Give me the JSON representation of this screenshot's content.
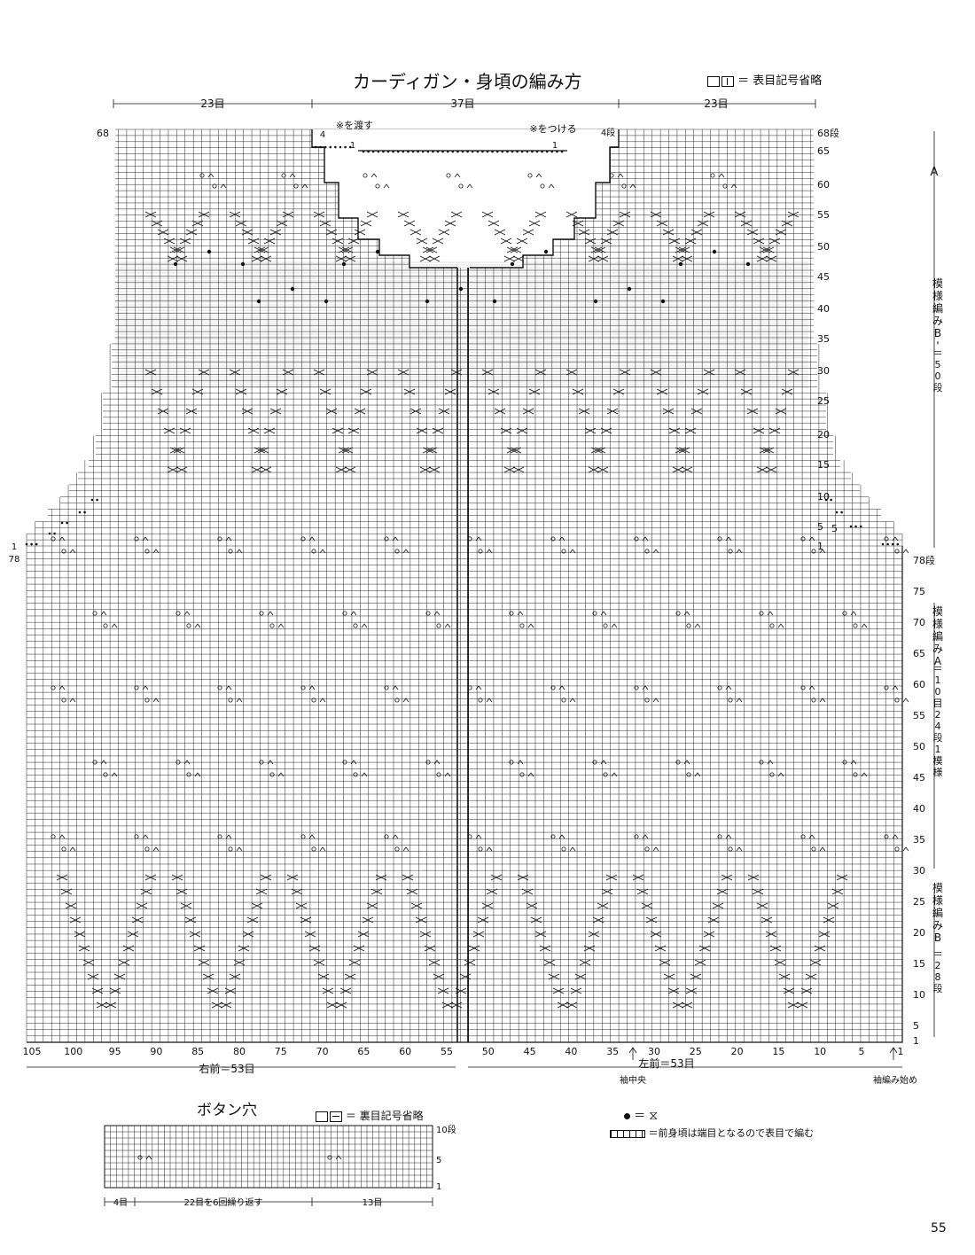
{
  "title": "カーディガン・身頃の編み方",
  "legend_top": "＝ 表目記号省略",
  "widths": {
    "left": "23目",
    "center": "37目",
    "right": "23目"
  },
  "annotations": {
    "transfer": "※を渡す",
    "attach": "※をつける",
    "four": "4",
    "one": "1",
    "four_rows": "4段",
    "sleeve_center": "袖中央",
    "sleeve_start": "袖編み始め",
    "right_front": "右前＝53目",
    "left_front": "左前＝53目"
  },
  "row_labels_upper": [
    "68段",
    "65",
    "60",
    "55",
    "50",
    "45",
    "40",
    "35",
    "30",
    "25",
    "20",
    "15",
    "10",
    "5",
    "1"
  ],
  "upper_left_labels": {
    "top": "68",
    "bottom_a": "1",
    "bottom_b": "78"
  },
  "row_labels_lower": [
    "78段",
    "75",
    "70",
    "65",
    "60",
    "55",
    "50",
    "45",
    "40",
    "35",
    "30",
    "25",
    "20",
    "15",
    "10",
    "5",
    "1"
  ],
  "col_labels": [
    "105",
    "100",
    "95",
    "90",
    "85",
    "80",
    "75",
    "70",
    "65",
    "60",
    "55",
    "50",
    "45",
    "40",
    "35",
    "30",
    "25",
    "20",
    "15",
    "10",
    "5",
    "1"
  ],
  "side": {
    "A": "A",
    "bprime_label": "模様編みB'",
    "bprime_rows": "＝50段",
    "a_label": "模様編みA",
    "a_rows": "＝10目24段1模様",
    "b_label": "模様編みB",
    "b_rows": "＝28段"
  },
  "buttonhole": {
    "title": "ボタン穴",
    "legend": "＝ 裏目記号省略",
    "row_labels": [
      "10段",
      "5",
      "1"
    ],
    "widths": [
      "4目",
      "22目を6回繰り返す",
      "13目"
    ]
  },
  "symbol_legend": {
    "bobble": "＝",
    "shaded": "＝前身頃は端目となるので表目で編む"
  },
  "page_number": "55"
}
